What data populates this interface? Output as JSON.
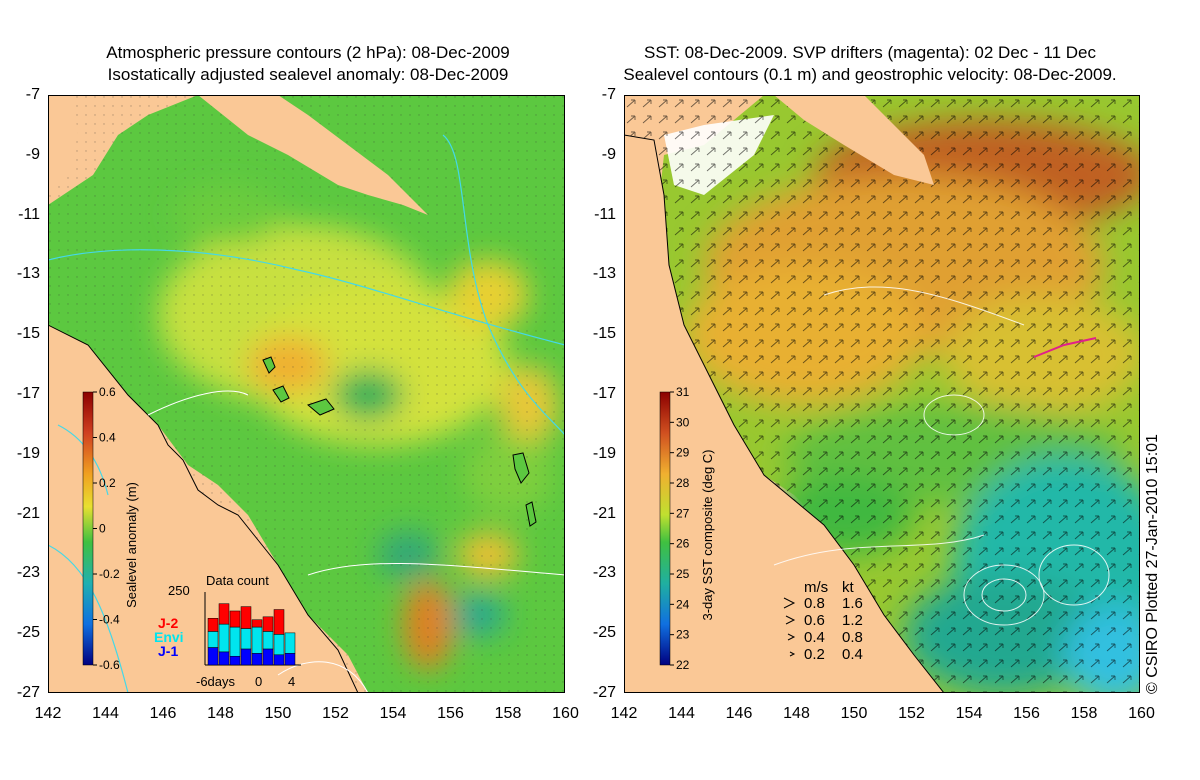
{
  "left_panel": {
    "title_line1": "Atmospheric pressure contours (2 hPa): 08-Dec-2009",
    "title_line2": "Isostatically adjusted sealevel anomaly: 08-Dec-2009",
    "colorbar_label": "Sealevel anomaly (m)",
    "colorbar_ticks": [
      "0.6",
      "0.4",
      "0.2",
      "0",
      "-0.2",
      "-0.4",
      "-0.6"
    ],
    "data_count": {
      "title": "Data count",
      "ymax_label": "250",
      "xtick_labels": [
        "-6days",
        "0",
        "4"
      ],
      "legend": [
        {
          "label": "J-2",
          "color": "#ff0000"
        },
        {
          "label": "Envi",
          "color": "#00e5ee"
        },
        {
          "label": "J-1",
          "color": "#0000ff"
        }
      ],
      "bars": [
        {
          "j1": 60,
          "envi": 55,
          "j2": 45
        },
        {
          "j1": 45,
          "envi": 95,
          "j2": 70
        },
        {
          "j1": 30,
          "envi": 100,
          "j2": 55
        },
        {
          "j1": 55,
          "envi": 70,
          "j2": 75
        },
        {
          "j1": 40,
          "envi": 90,
          "j2": 25
        },
        {
          "j1": 55,
          "envi": 60,
          "j2": 50
        },
        {
          "j1": 35,
          "envi": 70,
          "j2": 85
        },
        {
          "j1": 40,
          "envi": 70,
          "j2": 0
        }
      ]
    }
  },
  "right_panel": {
    "title_line1": "SST: 08-Dec-2009. SVP drifters (magenta): 02 Dec - 11 Dec",
    "title_line2": "Sealevel contours (0.1 m) and geostrophic velocity: 08-Dec-2009.",
    "colorbar_label": "3-day SST composite (deg C)",
    "colorbar_ticks": [
      "31",
      "30",
      "29",
      "28",
      "27",
      "26",
      "25",
      "24",
      "23",
      "22"
    ],
    "velocity_legend": {
      "header_ms": "m/s",
      "header_kt": "kt",
      "rows": [
        {
          "ms": "0.8",
          "kt": "1.6"
        },
        {
          "ms": "0.6",
          "kt": "1.2"
        },
        {
          "ms": "0.4",
          "kt": "0.8"
        },
        {
          "ms": "0.2",
          "kt": "0.4"
        }
      ]
    }
  },
  "axes": {
    "y_ticks": [
      "-7",
      "-9",
      "-11",
      "-13",
      "-15",
      "-17",
      "-19",
      "-21",
      "-23",
      "-25",
      "-27"
    ],
    "x_ticks": [
      "142",
      "144",
      "146",
      "148",
      "150",
      "152",
      "154",
      "156",
      "158",
      "160"
    ]
  },
  "credit": "© CSIRO Plotted 27-Jan-2010 15:01",
  "colors": {
    "land": "#fac896",
    "contour_cyan": "#44d8e8",
    "drifter_magenta": "#e0208a"
  }
}
